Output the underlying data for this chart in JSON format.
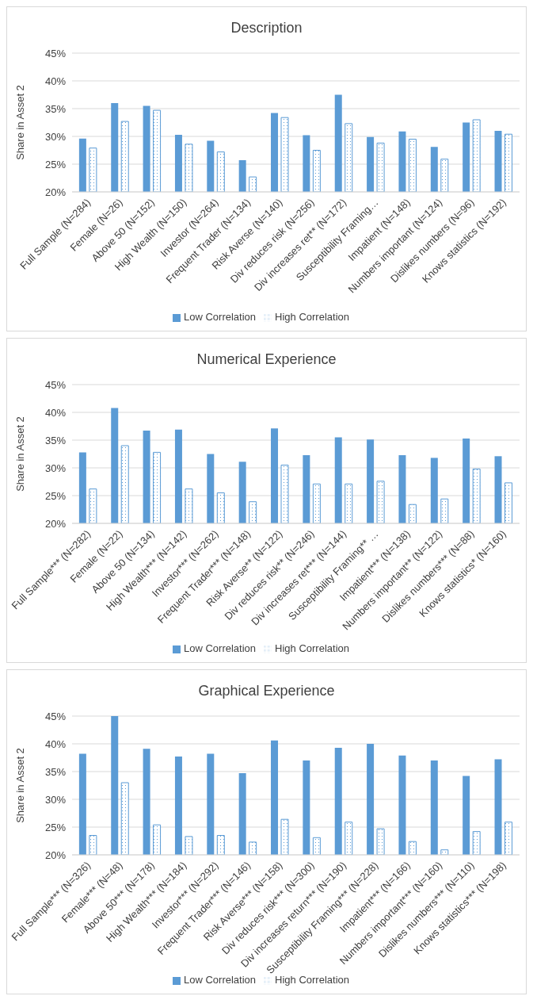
{
  "chart_data": [
    {
      "type": "bar",
      "title": "Description",
      "ylabel": "Share in Asset 2",
      "categories": [
        "Full Sample (N=284)",
        "Female (N=26)",
        "Above 50 (N=152)",
        "High Wealth (N=150)",
        "Investor (N=264)",
        "Frequent Trader (N=134)",
        "Risk Averse (N=140)",
        "Div reduces risk (N=256)",
        "Div increases ret** (N=172)",
        "Susceptibility Framing…",
        "Impatient (N=148)",
        "Numbers important (N=124)",
        "Dislikes numbers (N=96)",
        "Knows statistics (N=192)"
      ],
      "series": [
        {
          "name": "Low Correlation",
          "color": "#5b9bd5",
          "values": [
            29.6,
            36.0,
            35.5,
            30.3,
            29.2,
            25.7,
            34.2,
            30.2,
            37.5,
            29.9,
            30.9,
            28.1,
            32.5,
            31.0
          ]
        },
        {
          "name": "High Correlation",
          "color": "#5b9bd5",
          "values": [
            27.9,
            32.7,
            34.7,
            28.6,
            27.2,
            22.7,
            33.4,
            27.5,
            32.3,
            28.8,
            29.5,
            25.9,
            33.0,
            30.4
          ]
        }
      ],
      "ylim": [
        20,
        45
      ],
      "yticks": [
        {
          "value": 20,
          "label": "20%"
        },
        {
          "value": 25,
          "label": "25%"
        },
        {
          "value": 30,
          "label": "30%"
        },
        {
          "value": 35,
          "label": "35%"
        },
        {
          "value": 40,
          "label": "40%"
        },
        {
          "value": 45,
          "label": "45%"
        }
      ],
      "grid": "y",
      "legend": "bottom"
    },
    {
      "type": "bar",
      "title": "Numerical Experience",
      "ylabel": "Share in Asset 2",
      "categories": [
        "Full Sample*** (N=282)",
        "Female (N=22)",
        "Above 50 (N=134)",
        "High Wealth*** (N=142)",
        "Investor*** (N=262)",
        "Frequent Trader*** (N=148)",
        "Risk Averse** (N=122)",
        "Div reduces risk** (N=246)",
        "Div increases ret*** (N=144)",
        "Susceptibility Framing** …",
        "Impatient*** (N=138)",
        "Numbers important** (N=122)",
        "Dislikes numbers*** (N=88)",
        "Knows statistics* (N=160)"
      ],
      "series": [
        {
          "name": "Low Correlation",
          "color": "#5b9bd5",
          "values": [
            32.8,
            40.8,
            36.7,
            36.9,
            32.5,
            31.1,
            37.1,
            32.3,
            35.5,
            35.1,
            32.3,
            31.8,
            35.3,
            32.1
          ]
        },
        {
          "name": "High Correlation",
          "color": "#5b9bd5",
          "values": [
            26.2,
            34.0,
            32.8,
            26.2,
            25.5,
            23.9,
            30.5,
            27.1,
            27.1,
            27.6,
            23.4,
            24.4,
            29.8,
            27.3
          ]
        }
      ],
      "ylim": [
        20,
        45
      ],
      "yticks": [
        {
          "value": 20,
          "label": "20%"
        },
        {
          "value": 25,
          "label": "25%"
        },
        {
          "value": 30,
          "label": "30%"
        },
        {
          "value": 35,
          "label": "35%"
        },
        {
          "value": 40,
          "label": "40%"
        },
        {
          "value": 45,
          "label": "45%"
        }
      ],
      "grid": "y",
      "legend": "bottom"
    },
    {
      "type": "bar",
      "title": "Graphical Experience",
      "ylabel": "Share in Asset 2",
      "categories": [
        "Full Sample*** (N=326)",
        "Female*** (N=48)",
        "Above 50*** (N=178)",
        "High Wealth*** (N=184)",
        "Investor*** (N=292)",
        "Frequent Trader*** (N=146)",
        "Risk Averse*** (N=158)",
        "Div reduces risk*** (N=300)",
        "Div increases return*** (N=190)",
        "Susceptibility Framing*** (N=228)",
        "Impatient*** (N=166)",
        "Numbers important*** (N=160)",
        "Dislikes numbers*** (N=110)",
        "Knows statistics*** (N=198)"
      ],
      "series": [
        {
          "name": "Low Correlation",
          "color": "#5b9bd5",
          "values": [
            38.2,
            45.0,
            39.1,
            37.7,
            38.2,
            34.7,
            40.6,
            37.0,
            39.3,
            40.0,
            37.9,
            37.0,
            34.2,
            37.2
          ]
        },
        {
          "name": "High Correlation",
          "color": "#5b9bd5",
          "values": [
            23.5,
            33.0,
            25.4,
            23.3,
            23.5,
            22.3,
            26.4,
            23.1,
            25.9,
            24.7,
            22.4,
            20.9,
            24.2,
            25.9
          ]
        }
      ],
      "ylim": [
        20,
        45
      ],
      "yticks": [
        {
          "value": 20,
          "label": "20%"
        },
        {
          "value": 25,
          "label": "25%"
        },
        {
          "value": 30,
          "label": "30%"
        },
        {
          "value": 35,
          "label": "35%"
        },
        {
          "value": 40,
          "label": "40%"
        },
        {
          "value": 45,
          "label": "45%"
        }
      ],
      "grid": "y",
      "legend": "bottom"
    }
  ]
}
